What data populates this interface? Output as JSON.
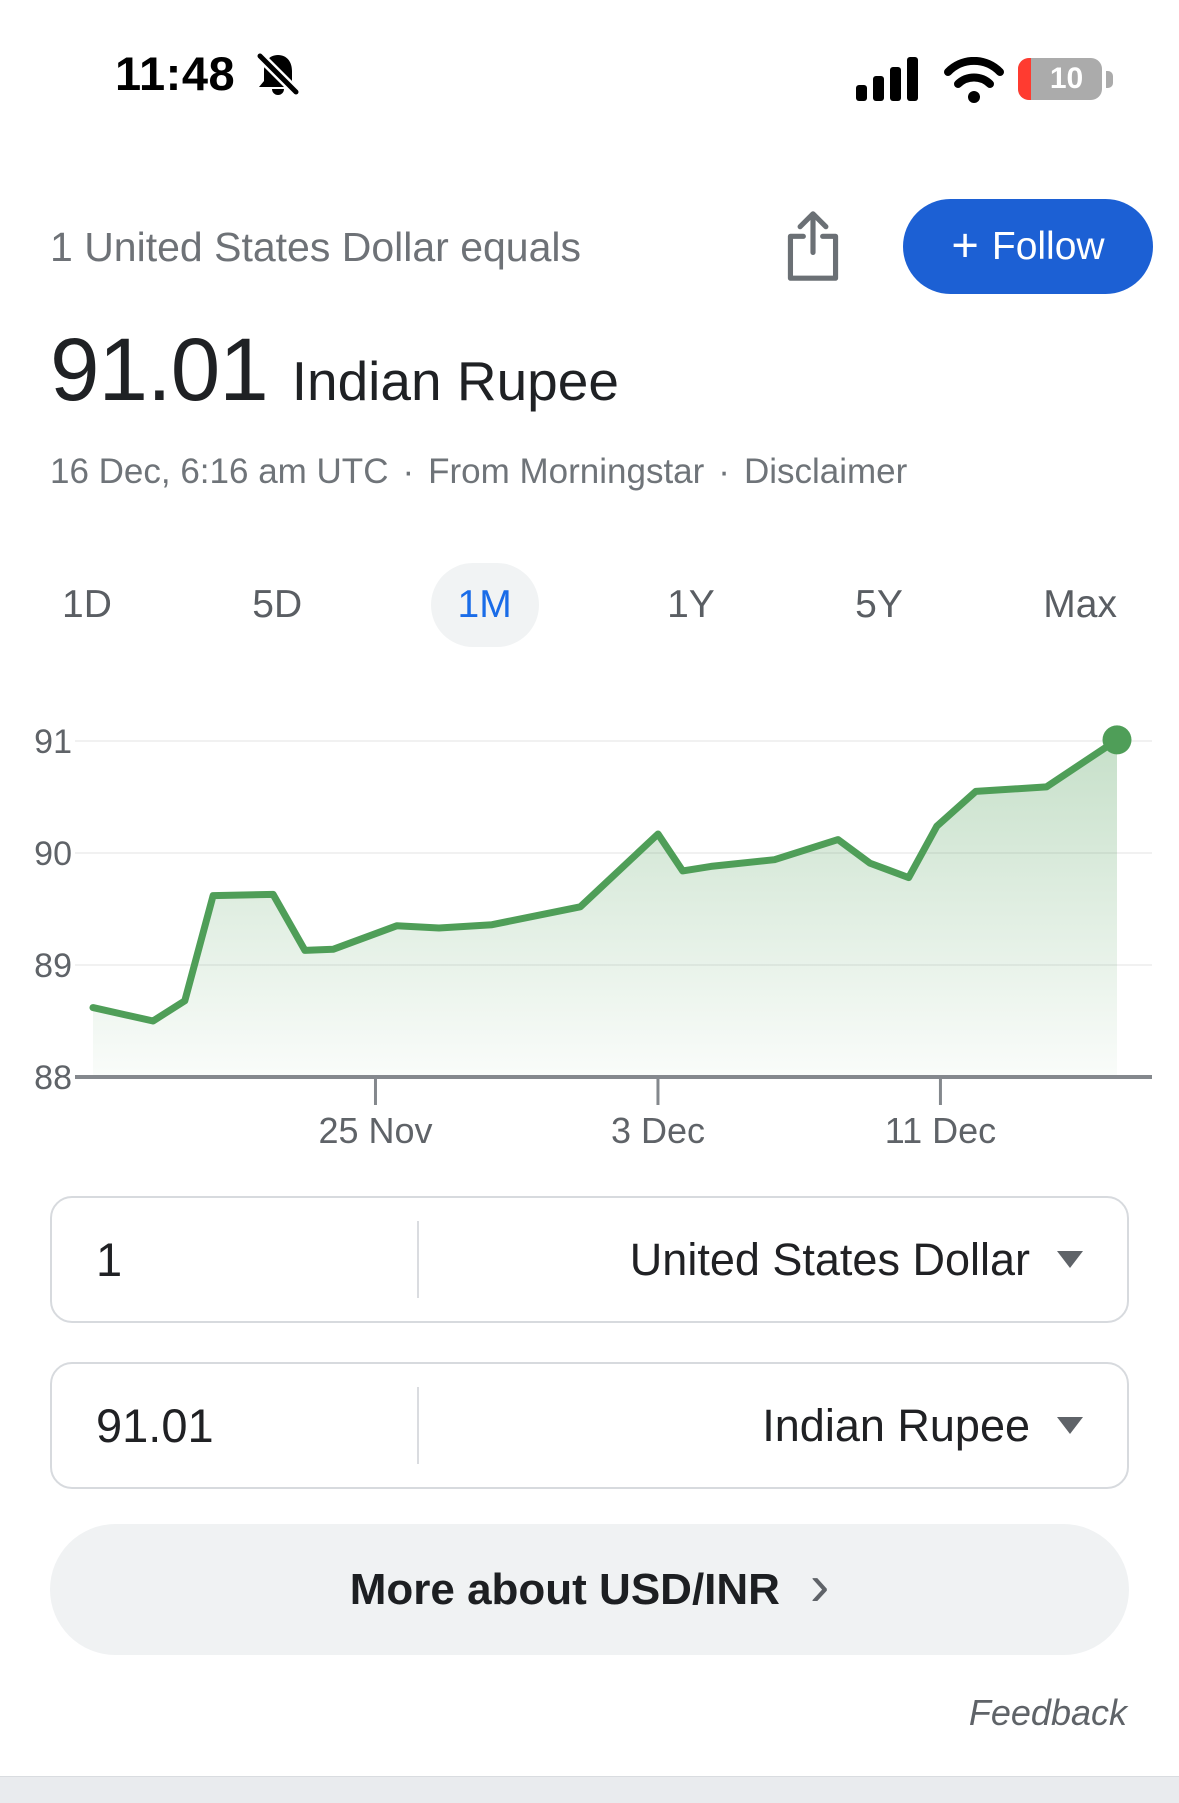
{
  "status_bar": {
    "time": "11:48",
    "battery_percent": "10"
  },
  "header": {
    "title": "1 United States Dollar equals",
    "follow_plus": "+",
    "follow_label": "Follow"
  },
  "rate": {
    "value": "91.01",
    "currency_name": "Indian Rupee"
  },
  "meta": {
    "timestamp": "16 Dec, 6:16 am UTC",
    "separator": "·",
    "source": "From Morningstar",
    "disclaimer": "Disclaimer"
  },
  "tabs": [
    {
      "label": "1D",
      "selected": false
    },
    {
      "label": "5D",
      "selected": false
    },
    {
      "label": "1M",
      "selected": true
    },
    {
      "label": "1Y",
      "selected": false
    },
    {
      "label": "5Y",
      "selected": false
    },
    {
      "label": "Max",
      "selected": false
    }
  ],
  "chart_data": {
    "type": "area",
    "title": "USD to INR exchange rate, 1 month",
    "series_name": "USD/INR",
    "x_unit": "days since 17 Nov",
    "x": [
      0,
      1.7,
      2.6,
      3.4,
      5.1,
      6,
      6.8,
      8.6,
      9.8,
      11.3,
      13.8,
      16,
      16.7,
      17.5,
      19.3,
      21.1,
      22,
      23.1,
      23.9,
      25,
      27,
      29
    ],
    "values": [
      88.62,
      88.5,
      88.68,
      89.62,
      89.63,
      89.13,
      89.14,
      89.35,
      89.33,
      89.36,
      89.52,
      90.17,
      89.84,
      89.88,
      89.94,
      90.12,
      89.91,
      89.78,
      90.24,
      90.55,
      90.59,
      91.01
    ],
    "x_ticks": [
      {
        "label": "25 Nov",
        "x": 8
      },
      {
        "label": "3 Dec",
        "x": 16
      },
      {
        "label": "11 Dec",
        "x": 24
      }
    ],
    "y_ticks": [
      88,
      89,
      90,
      91
    ],
    "ylim": [
      88,
      91.3
    ],
    "xlim": [
      0,
      29
    ],
    "end_point_value": 91.01,
    "line_color": "#4f9e58",
    "grid": "horizontal-light",
    "legend": "none"
  },
  "converter": {
    "rows": [
      {
        "amount": "1",
        "currency": "United States Dollar"
      },
      {
        "amount": "91.01",
        "currency": "Indian Rupee"
      }
    ]
  },
  "more_about": {
    "label": "More about USD/INR",
    "chevron": "›"
  },
  "feedback": "Feedback",
  "colors": {
    "follow_blue": "#1c60d4",
    "selected_tab_blue": "#1a6ce8",
    "chart_green": "#4f9e58",
    "low_battery_red": "#ff3b30",
    "text_primary": "#202124",
    "text_secondary": "#6f7479"
  }
}
